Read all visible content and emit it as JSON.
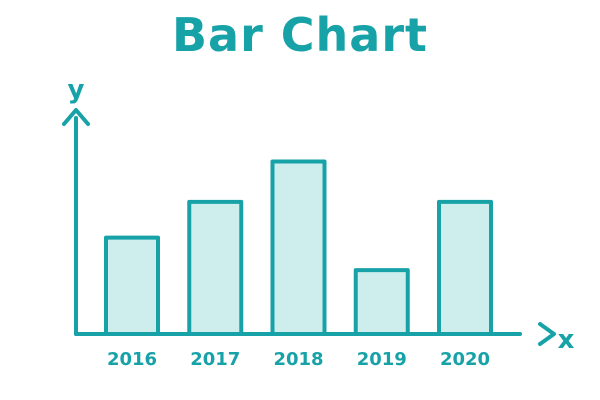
{
  "chart_data": {
    "type": "bar",
    "title": "Bar Chart",
    "xlabel": "x",
    "ylabel": "y",
    "categories": [
      "2016",
      "2017",
      "2018",
      "2019",
      "2020"
    ],
    "values": [
      86,
      118,
      154,
      57,
      118
    ],
    "ylim": [
      0,
      200
    ],
    "grid": false,
    "colors": {
      "stroke": "#17a2a8",
      "fill": "#cdeeed",
      "text": "#17a2a8"
    }
  }
}
